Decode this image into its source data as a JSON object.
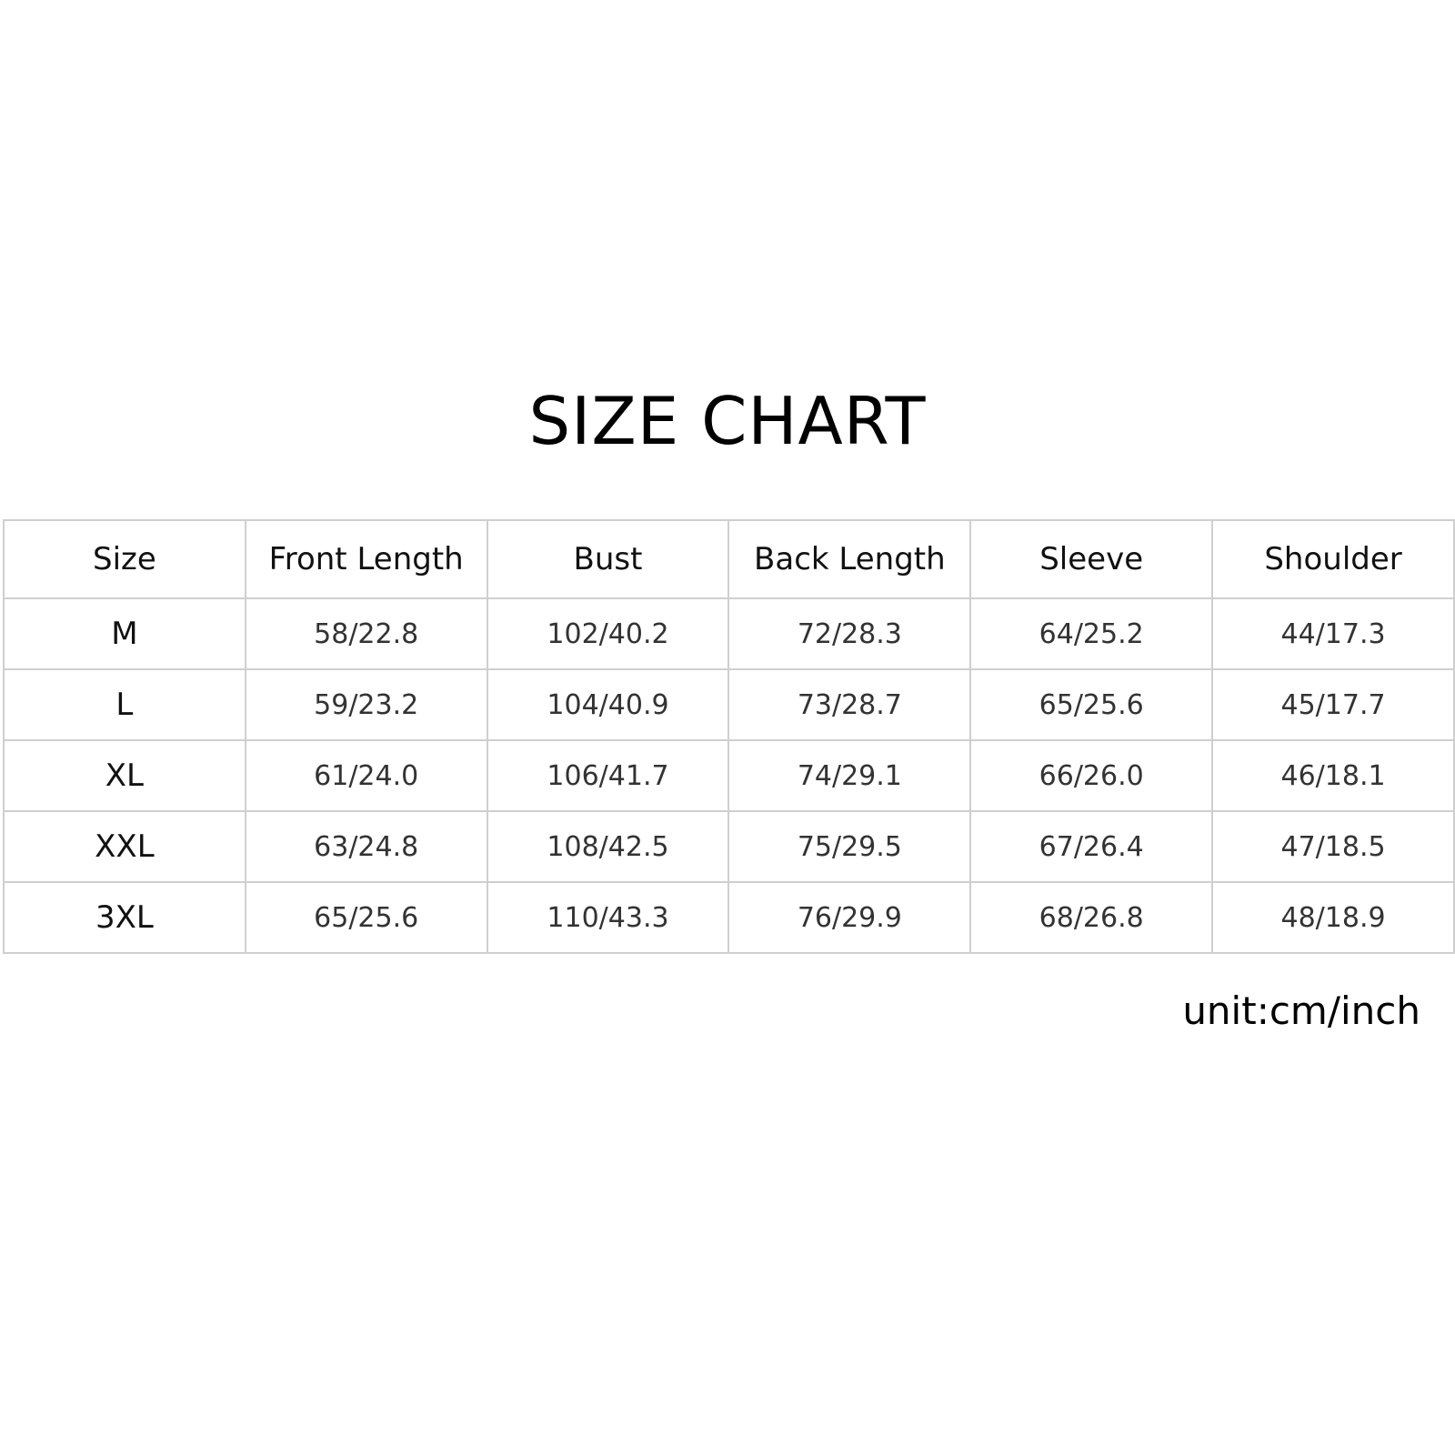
{
  "title": "SIZE CHART",
  "unit_note": "unit:cm/inch",
  "table": {
    "headers": [
      "Size",
      "Front Length",
      "Bust",
      "Back Length",
      "Sleeve",
      "Shoulder"
    ],
    "rows": [
      [
        "M",
        "58/22.8",
        "102/40.2",
        "72/28.3",
        "64/25.2",
        "44/17.3"
      ],
      [
        "L",
        "59/23.2",
        "104/40.9",
        "73/28.7",
        "65/25.6",
        "45/17.7"
      ],
      [
        "XL",
        "61/24.0",
        "106/41.7",
        "74/29.1",
        "66/26.0",
        "46/18.1"
      ],
      [
        "XXL",
        "63/24.8",
        "108/42.5",
        "75/29.5",
        "67/26.4",
        "47/18.5"
      ],
      [
        "3XL",
        "65/25.6",
        "110/43.3",
        "76/29.9",
        "68/26.8",
        "48/18.9"
      ]
    ]
  },
  "colors": {
    "text": "#111111",
    "value_text": "#333333",
    "grid": "#cfcfcf",
    "background": "#ffffff"
  }
}
